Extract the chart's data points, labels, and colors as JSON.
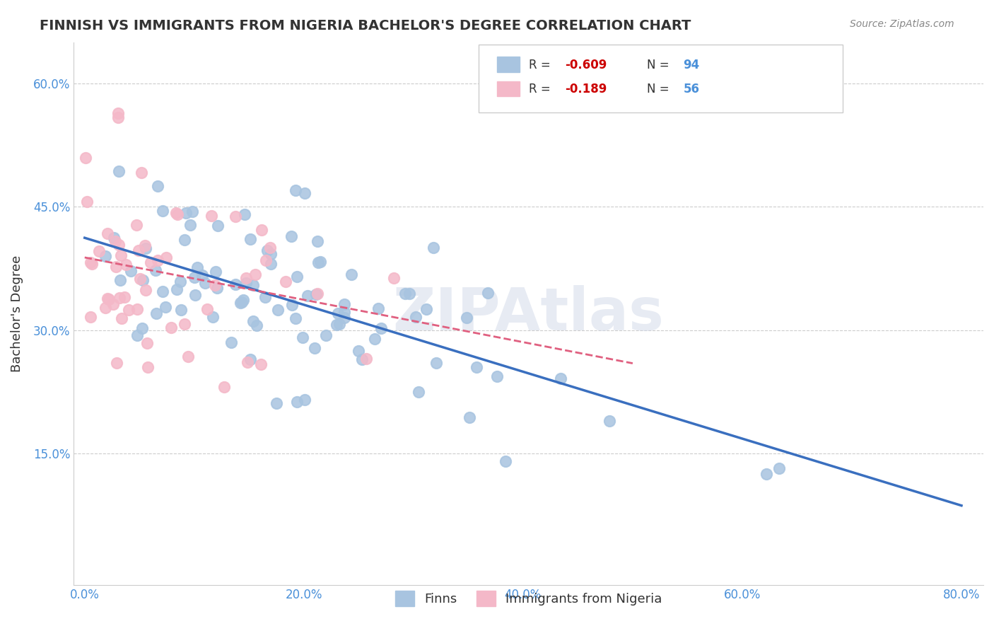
{
  "title": "FINNISH VS IMMIGRANTS FROM NIGERIA BACHELOR'S DEGREE CORRELATION CHART",
  "source": "Source: ZipAtlas.com",
  "xlabel_ticks": [
    "0.0%",
    "20.0%",
    "40.0%",
    "60.0%",
    "80.0%"
  ],
  "xlabel_tick_vals": [
    0.0,
    0.2,
    0.4,
    0.6,
    0.8
  ],
  "ylabel": "Bachelor's Degree",
  "ylabel_ticks": [
    "15.0%",
    "30.0%",
    "45.0%",
    "60.0%"
  ],
  "ylabel_tick_vals": [
    0.15,
    0.3,
    0.45,
    0.6
  ],
  "xlim": [
    -0.01,
    0.82
  ],
  "ylim": [
    -0.01,
    0.65
  ],
  "finns_color": "#a8c4e0",
  "nigeria_color": "#f4b8c8",
  "finns_line_color": "#3a6fbf",
  "nigeria_line_color": "#e06080",
  "R_finns": -0.609,
  "N_finns": 94,
  "R_nigeria": -0.189,
  "N_nigeria": 56,
  "legend_label_finns": "Finns",
  "legend_label_nigeria": "Immigrants from Nigeria",
  "background_color": "#ffffff",
  "grid_color": "#cccccc",
  "watermark_text": "ZIPAtlas",
  "watermark_color": "#d0d8e8",
  "title_color": "#333333",
  "axis_label_color": "#333333",
  "tick_color": "#4a90d9",
  "legend_R_color": "#cc0000",
  "legend_N_color": "#4a90d9",
  "seed": 42
}
